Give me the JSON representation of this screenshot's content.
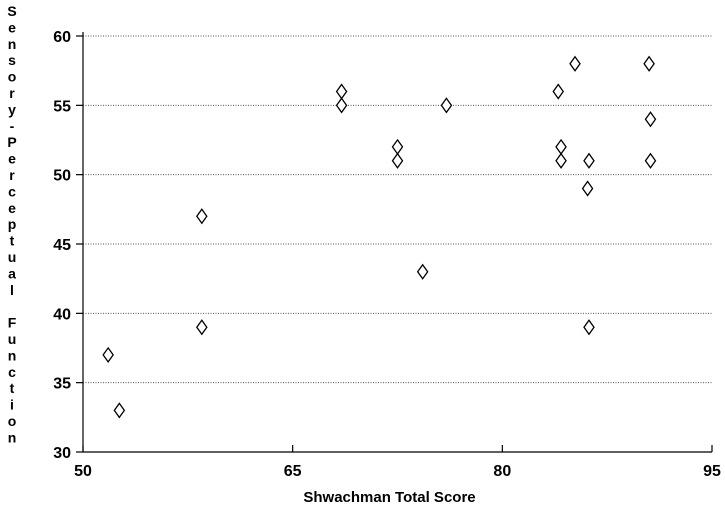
{
  "chart_data": {
    "type": "scatter",
    "xlabel": "Shwachman Total Score",
    "ylabel": "Sensory-Perceptual Function",
    "xlim": [
      50,
      95
    ],
    "ylim": [
      30,
      60
    ],
    "x_ticks": [
      50,
      65,
      80,
      95
    ],
    "y_ticks": [
      30,
      35,
      40,
      45,
      50,
      55,
      60
    ],
    "grid": "horizontal dotted",
    "marker": "open-diamond",
    "points": [
      {
        "x": 51.8,
        "y": 37
      },
      {
        "x": 52.6,
        "y": 33
      },
      {
        "x": 58.5,
        "y": 47
      },
      {
        "x": 58.5,
        "y": 39
      },
      {
        "x": 68.5,
        "y": 56
      },
      {
        "x": 68.5,
        "y": 55
      },
      {
        "x": 72.5,
        "y": 52
      },
      {
        "x": 72.5,
        "y": 51
      },
      {
        "x": 74.3,
        "y": 43
      },
      {
        "x": 76.0,
        "y": 55
      },
      {
        "x": 84.0,
        "y": 56
      },
      {
        "x": 84.2,
        "y": 52
      },
      {
        "x": 84.2,
        "y": 51
      },
      {
        "x": 85.2,
        "y": 58
      },
      {
        "x": 86.2,
        "y": 51
      },
      {
        "x": 86.1,
        "y": 49
      },
      {
        "x": 86.2,
        "y": 39
      },
      {
        "x": 90.5,
        "y": 58
      },
      {
        "x": 90.6,
        "y": 54
      },
      {
        "x": 90.6,
        "y": 51
      }
    ]
  }
}
